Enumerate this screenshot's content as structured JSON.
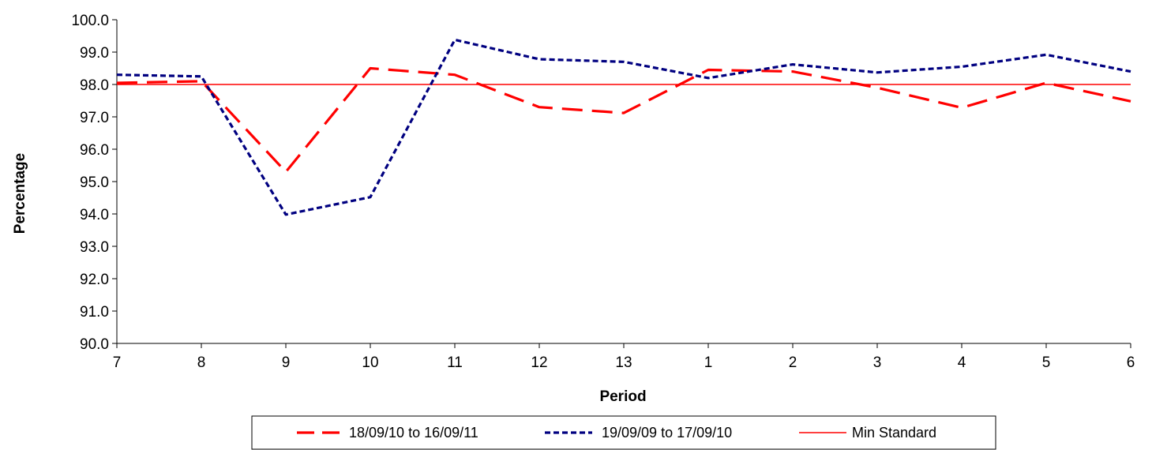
{
  "chart_data": {
    "type": "line",
    "title": "",
    "xlabel": "Period",
    "ylabel": "Percentage",
    "categories": [
      "7",
      "8",
      "9",
      "10",
      "11",
      "12",
      "13",
      "1",
      "2",
      "3",
      "4",
      "5",
      "6"
    ],
    "ylim": [
      90.0,
      100.0
    ],
    "yticks": [
      "90.0",
      "91.0",
      "92.0",
      "93.0",
      "94.0",
      "95.0",
      "96.0",
      "97.0",
      "98.0",
      "99.0",
      "100.0"
    ],
    "grid": false,
    "legend_position": "bottom",
    "series": [
      {
        "name": "18/09/10 to 16/09/11",
        "values": [
          98.05,
          98.1,
          95.3,
          98.5,
          98.3,
          97.3,
          97.12,
          98.45,
          98.4,
          97.9,
          97.28,
          98.05,
          97.48
        ],
        "color": "#ff0000",
        "style": "long-dash"
      },
      {
        "name": "19/09/09 to 17/09/10",
        "values": [
          98.3,
          98.25,
          93.98,
          94.52,
          99.38,
          98.78,
          98.7,
          98.2,
          98.62,
          98.37,
          98.55,
          98.92,
          98.4
        ],
        "color": "#000080",
        "style": "short-dash"
      },
      {
        "name": "Min Standard",
        "values": [
          98.0,
          98.0,
          98.0,
          98.0,
          98.0,
          98.0,
          98.0,
          98.0,
          98.0,
          98.0,
          98.0,
          98.0,
          98.0
        ],
        "color": "#ff0000",
        "style": "solid"
      }
    ]
  }
}
